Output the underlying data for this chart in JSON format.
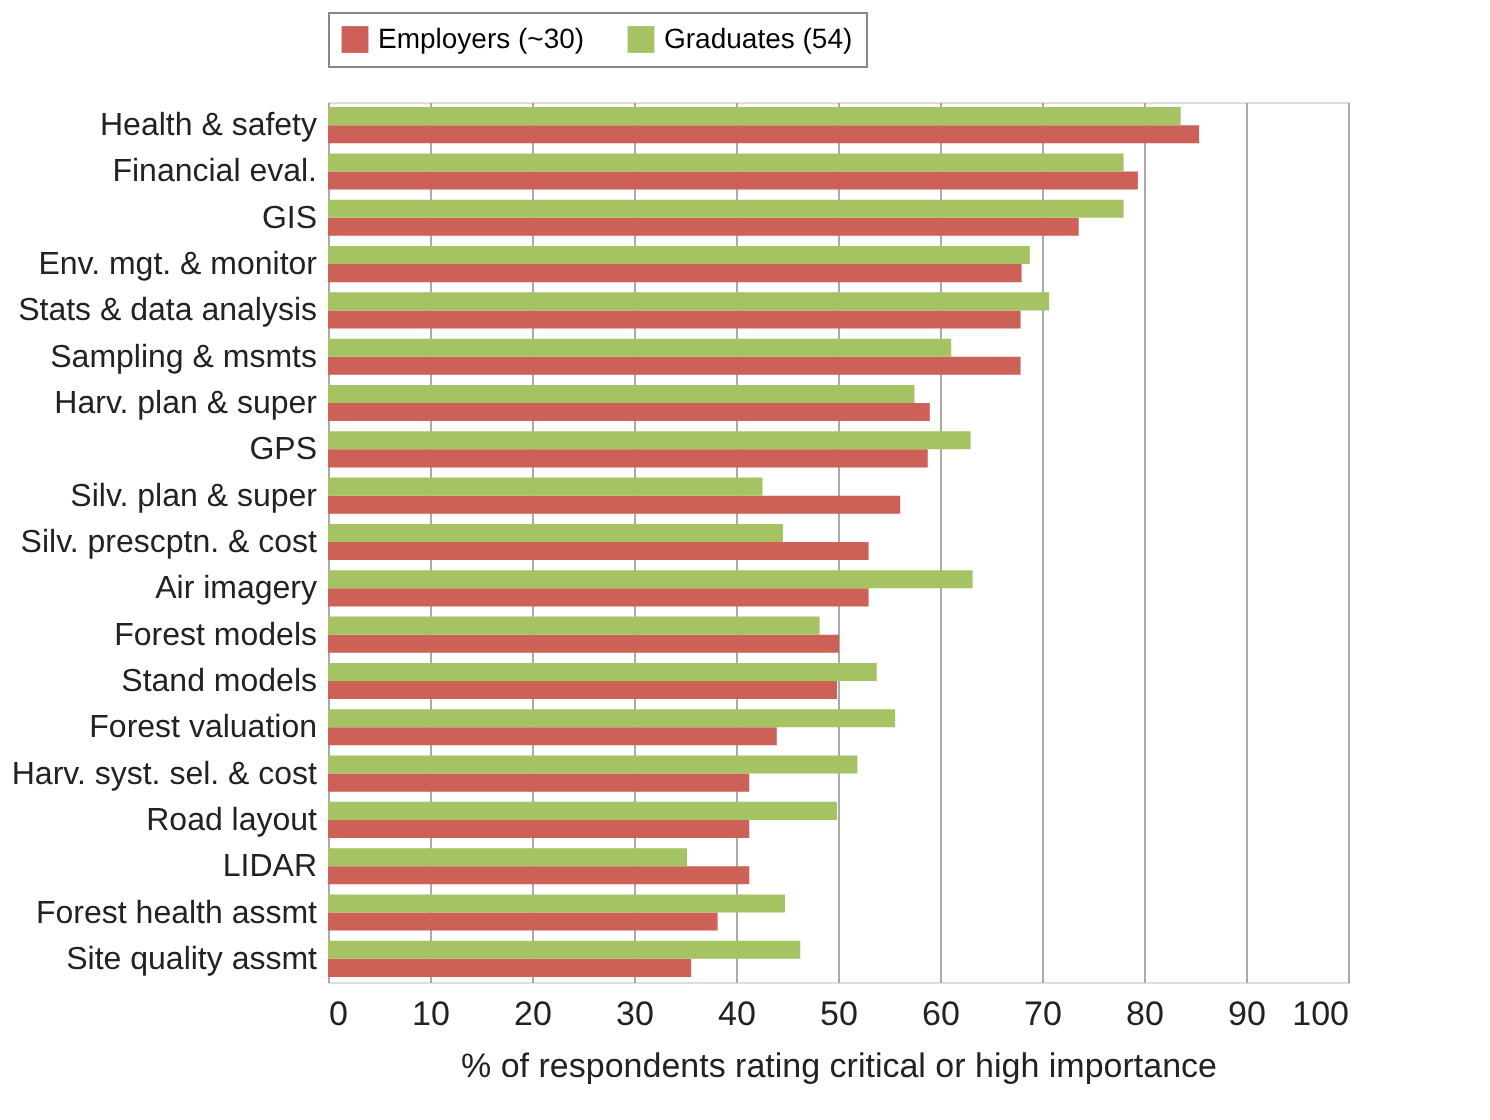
{
  "chart_data": {
    "type": "bar",
    "orientation": "horizontal",
    "xlabel": "% of respondents rating critical or high importance",
    "categories": [
      "Health & safety",
      "Financial eval.",
      "GIS",
      "Env. mgt. & monitor",
      "Stats & data analysis",
      "Sampling & msmts",
      "Harv. plan & super",
      "GPS",
      "Silv. plan & super",
      "Silv. prescptn. & cost",
      "Air imagery",
      "Forest models",
      "Stand models",
      "Forest valuation",
      "Harv. syst. sel. & cost",
      "Road layout",
      "LIDAR",
      "Forest health assmt",
      "Site quality assmt"
    ],
    "series": [
      {
        "name": "Employers (~30)",
        "color": "#cd6158",
        "values": [
          85.4,
          79.4,
          73.6,
          68.0,
          67.9,
          67.9,
          59.0,
          58.8,
          56.1,
          53.0,
          53.0,
          50.1,
          49.9,
          44.0,
          41.3,
          41.3,
          41.3,
          38.2,
          35.6
        ]
      },
      {
        "name": "Graduates (54)",
        "color": "#a6c364",
        "values": [
          83.6,
          78.0,
          78.0,
          68.8,
          70.7,
          61.1,
          57.5,
          63.0,
          42.6,
          44.6,
          63.2,
          48.2,
          53.8,
          55.6,
          51.9,
          49.9,
          35.2,
          44.8,
          46.3
        ]
      }
    ],
    "xlim": [
      0,
      100
    ],
    "xticks": [
      0,
      10,
      20,
      30,
      40,
      50,
      60,
      70,
      80,
      90,
      100
    ],
    "grid": "x",
    "legend": "top"
  }
}
